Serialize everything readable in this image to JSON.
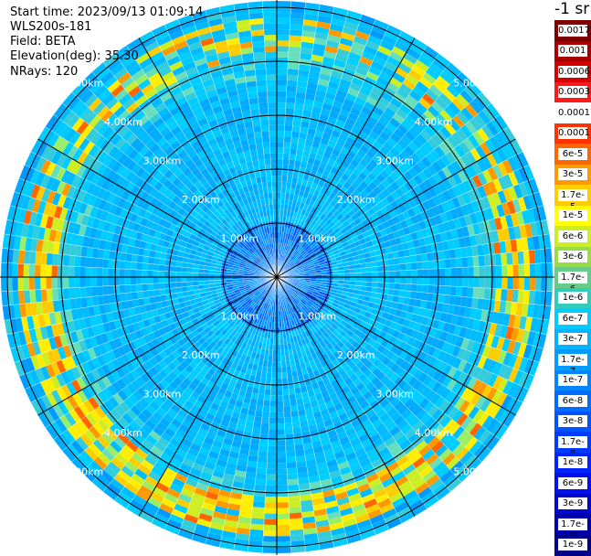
{
  "header": {
    "start_time": "Start time: 2023/09/13 01:09:14",
    "instrument": "WLS200s-181",
    "field": "Field: BETA",
    "elevation": "Elevation(deg): 35.30",
    "nrays": "NRays: 120"
  },
  "colorbar": {
    "unit": "-1 sr",
    "labels": [
      "0.0017",
      "0.001",
      "0.0006",
      "0.0003",
      "0.00017",
      "0.0001",
      "6e-5",
      "3e-5",
      "1.7e-5",
      "1e-5",
      "6e-6",
      "3e-6",
      "1.7e-6",
      "1e-6",
      "6e-7",
      "3e-7",
      "1.7e-7",
      "1e-7",
      "6e-8",
      "3e-8",
      "1.7e-8",
      "1e-8",
      "6e-9",
      "3e-9",
      "1.7e-9",
      "1e-9"
    ],
    "colors": [
      "#7f0000",
      "#a80000",
      "#d40000",
      "#ff1a1a",
      "#ffffff",
      "#ff3300",
      "#ff6600",
      "#ff9900",
      "#ffcc00",
      "#ffff00",
      "#ccee22",
      "#99dd44",
      "#66cc88",
      "#33ccbb",
      "#00ccff",
      "#00b4ff",
      "#009cff",
      "#0084ff",
      "#006cff",
      "#0054ff",
      "#003cff",
      "#0024ff",
      "#0010ee",
      "#0008cc",
      "#0000aa",
      "#000088"
    ]
  },
  "range_rings": {
    "labels": [
      "1.00km",
      "2.00km",
      "3.00km",
      "4.00km",
      "5.00km"
    ]
  }
}
